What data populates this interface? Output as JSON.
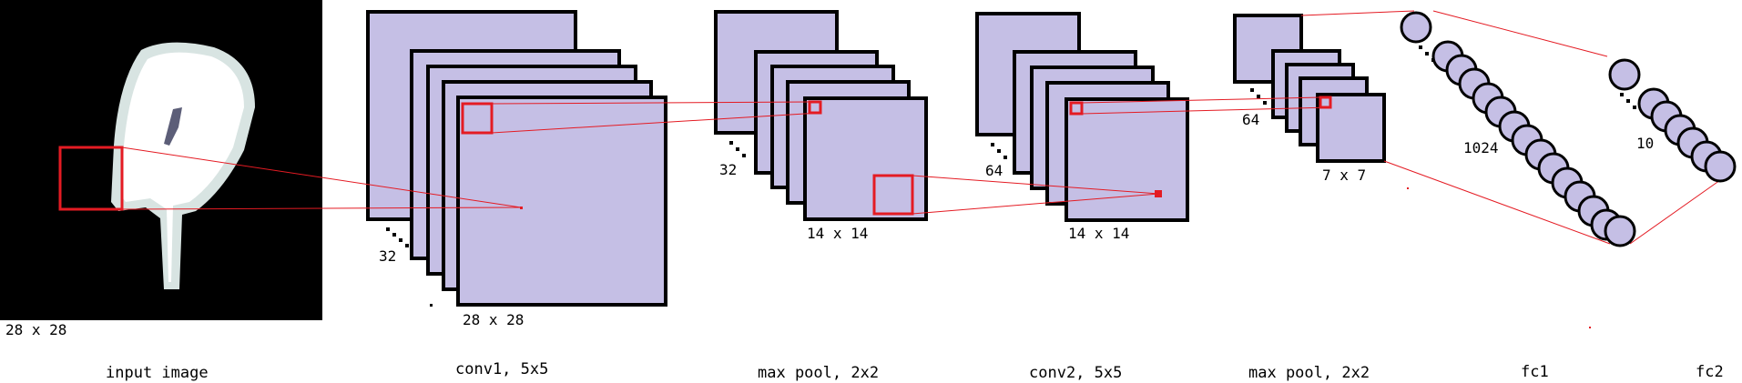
{
  "colors": {
    "feature_map": "#c5bfe5",
    "outline": "#000000",
    "receptive_field": "#e41b23",
    "input_background": "#000000"
  },
  "input": {
    "size_label": "28 x 28",
    "caption": "input image"
  },
  "conv1": {
    "count_label": "32",
    "size_label": "28 x 28",
    "caption": "conv1, 5x5"
  },
  "pool1": {
    "count_label": "32",
    "size_label": "14 x 14",
    "caption": "max pool, 2x2"
  },
  "conv2": {
    "count_label": "64",
    "size_label": "14 x 14",
    "caption": "conv2, 5x5"
  },
  "pool2": {
    "count_label": "64",
    "size_label": "7 x 7",
    "caption": "max pool, 2x2"
  },
  "fc1": {
    "count_label": "1024",
    "caption": "fc1"
  },
  "fc2": {
    "count_label": "10",
    "caption": "fc2"
  }
}
